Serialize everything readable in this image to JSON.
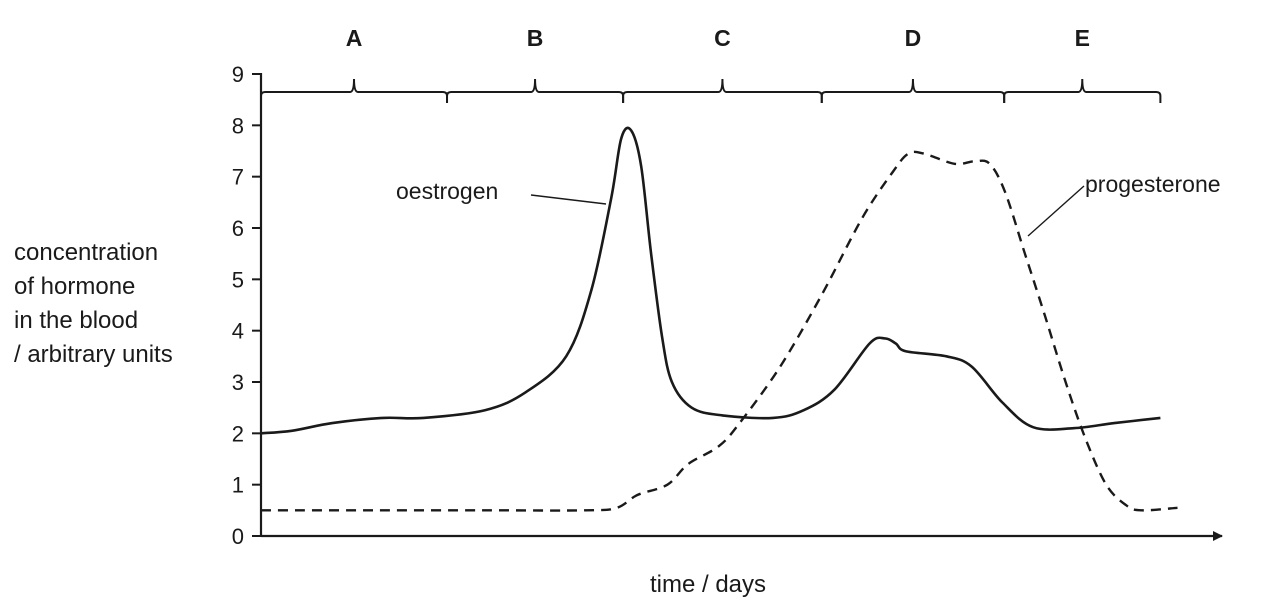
{
  "chart_data": {
    "type": "line",
    "title": "",
    "xlabel": "time / days",
    "ylabel_lines": [
      "concentration",
      "of hormone",
      "in the blood",
      "/ arbitrary units"
    ],
    "ylim": [
      0,
      9
    ],
    "xlim": [
      0,
      100
    ],
    "yticks": [
      0,
      1,
      2,
      3,
      4,
      5,
      6,
      7,
      8,
      9
    ],
    "phases": [
      {
        "label": "A",
        "start": 0,
        "end": 20.6
      },
      {
        "label": "B",
        "start": 20.6,
        "end": 40.1
      },
      {
        "label": "C",
        "start": 40.1,
        "end": 62.1
      },
      {
        "label": "D",
        "start": 62.1,
        "end": 82.3
      },
      {
        "label": "E",
        "start": 82.3,
        "end": 99.6
      }
    ],
    "series": [
      {
        "name": "oestrogen",
        "style": "solid",
        "x": [
          0,
          3.4,
          7.9,
          13.5,
          18.0,
          24.8,
          29.3,
          33.8,
          36.6,
          38.8,
          39.9,
          41.0,
          42.1,
          43.2,
          44.4,
          45.5,
          47.7,
          51.1,
          56.7,
          60.1,
          63.5,
          67.4,
          69.1,
          70.3,
          71.4,
          75.9,
          78.7,
          82.1,
          85.5,
          90.0,
          94.5,
          99.6
        ],
        "values": [
          2.0,
          2.05,
          2.2,
          2.3,
          2.3,
          2.45,
          2.8,
          3.5,
          4.8,
          6.6,
          7.75,
          7.9,
          7.2,
          5.5,
          3.9,
          3.0,
          2.5,
          2.35,
          2.3,
          2.45,
          2.85,
          3.75,
          3.85,
          3.75,
          3.6,
          3.5,
          3.3,
          2.6,
          2.12,
          2.1,
          2.2,
          2.3
        ]
      },
      {
        "name": "progesterone",
        "style": "dashed",
        "x": [
          0,
          12.4,
          24.8,
          36.0,
          39.4,
          41.7,
          45.0,
          47.3,
          50.7,
          53.0,
          57.5,
          62.1,
          66.6,
          70.0,
          71.7,
          73.4,
          76.8,
          79.0,
          80.7,
          82.4,
          84.6,
          86.8,
          89.1,
          91.3,
          93.6,
          95.8,
          97.5,
          101.5
        ],
        "values": [
          0.5,
          0.5,
          0.5,
          0.5,
          0.55,
          0.8,
          1.0,
          1.4,
          1.75,
          2.2,
          3.3,
          4.7,
          6.2,
          7.1,
          7.45,
          7.45,
          7.25,
          7.3,
          7.25,
          6.7,
          5.5,
          4.3,
          3.0,
          1.9,
          1.0,
          0.6,
          0.5,
          0.55
        ]
      }
    ],
    "annotations": [
      {
        "text": "oestrogen",
        "series": "oestrogen"
      },
      {
        "text": "progesterone",
        "series": "progesterone"
      }
    ]
  }
}
